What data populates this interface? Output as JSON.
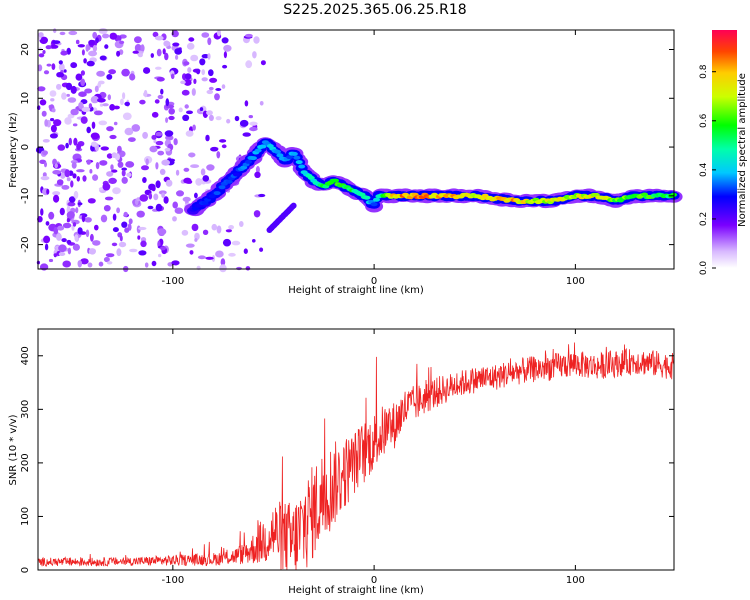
{
  "title": "S225.2025.365.06.25.R18",
  "chart_data": [
    {
      "type": "heatmap",
      "title": "",
      "xlabel": "Height of straight line (km)",
      "ylabel": "Frequency (Hz)",
      "xlim": [
        -167,
        149
      ],
      "ylim": [
        -25,
        24
      ],
      "xticks": [
        -100,
        0,
        100
      ],
      "yticks": [
        20,
        10,
        0,
        -10,
        -20
      ],
      "xtick_labels": [
        "-100",
        "0",
        "100"
      ],
      "ytick_labels": [
        "20",
        "10",
        "0",
        "-10",
        "-20"
      ],
      "colorbar": {
        "label": "Normalized spectral amplitude",
        "range": [
          0,
          0.97
        ],
        "ticks": [
          0.0,
          0.2,
          0.4,
          0.6,
          0.8
        ],
        "tick_labels": [
          "0.0",
          "0.2",
          "0.4",
          "0.6",
          "0.8"
        ]
      },
      "ridge": {
        "description_points_x_km": [
          -90,
          -80,
          -70,
          -60,
          -54,
          -48,
          -44,
          -40,
          -35,
          -30,
          -25,
          -20,
          -15,
          -10,
          -5,
          0,
          2,
          10,
          30,
          50,
          70,
          80,
          90,
          100,
          110,
          120,
          130,
          149
        ],
        "frequency_hz": [
          -13,
          -10,
          -6,
          -2,
          1,
          -1,
          -3,
          -1,
          -5,
          -7,
          -8,
          -7,
          -8,
          -9,
          -10,
          -12,
          -10,
          -10,
          -10,
          -10,
          -11,
          -11,
          -11,
          -10,
          -10,
          -11,
          -10,
          -10
        ],
        "amplitude": [
          0.3,
          0.35,
          0.35,
          0.4,
          0.45,
          0.45,
          0.4,
          0.4,
          0.5,
          0.55,
          0.6,
          0.7,
          0.65,
          0.6,
          0.55,
          0.4,
          0.5,
          0.9,
          0.92,
          0.85,
          0.9,
          0.75,
          0.8,
          0.8,
          0.85,
          0.7,
          0.7,
          0.6
        ]
      },
      "secondary_ridge": {
        "x_km": [
          -52,
          -40
        ],
        "frequency_hz": [
          -17,
          -12
        ]
      },
      "noise_region_x_km": [
        -167,
        -55
      ]
    },
    {
      "type": "line",
      "title": "",
      "xlabel": "Height of straight line (km)",
      "ylabel": "SNR (10 * v/v)",
      "xlim": [
        -167,
        149
      ],
      "ylim": [
        0,
        450
      ],
      "xticks": [
        -100,
        0,
        100
      ],
      "yticks": [
        0,
        100,
        200,
        300,
        400
      ],
      "xtick_labels": [
        "-100",
        "0",
        "100"
      ],
      "ytick_labels": [
        "0",
        "100",
        "200",
        "300",
        "400"
      ],
      "series": [
        {
          "name": "SNR",
          "color": "#ee2222",
          "x": [
            -167,
            -140,
            -120,
            -100,
            -80,
            -70,
            -65,
            -60,
            -55,
            -50,
            -45,
            -40,
            -35,
            -30,
            -25,
            -20,
            -15,
            -10,
            -5,
            0,
            5,
            10,
            15,
            20,
            25,
            30,
            40,
            50,
            60,
            70,
            80,
            90,
            100,
            110,
            120,
            130,
            140,
            149
          ],
          "values": [
            15,
            15,
            16,
            18,
            20,
            25,
            30,
            40,
            55,
            70,
            60,
            50,
            80,
            110,
            140,
            160,
            180,
            200,
            220,
            240,
            260,
            270,
            300,
            310,
            320,
            330,
            345,
            355,
            360,
            370,
            375,
            380,
            385,
            380,
            385,
            390,
            385,
            380
          ],
          "noise_amplitude": [
            8,
            8,
            8,
            10,
            12,
            15,
            20,
            30,
            45,
            60,
            70,
            80,
            90,
            90,
            90,
            80,
            70,
            60,
            60,
            55,
            50,
            45,
            40,
            35,
            30,
            30,
            25,
            25,
            25,
            25,
            25,
            25,
            25,
            25,
            25,
            25,
            25,
            25
          ]
        }
      ]
    }
  ]
}
